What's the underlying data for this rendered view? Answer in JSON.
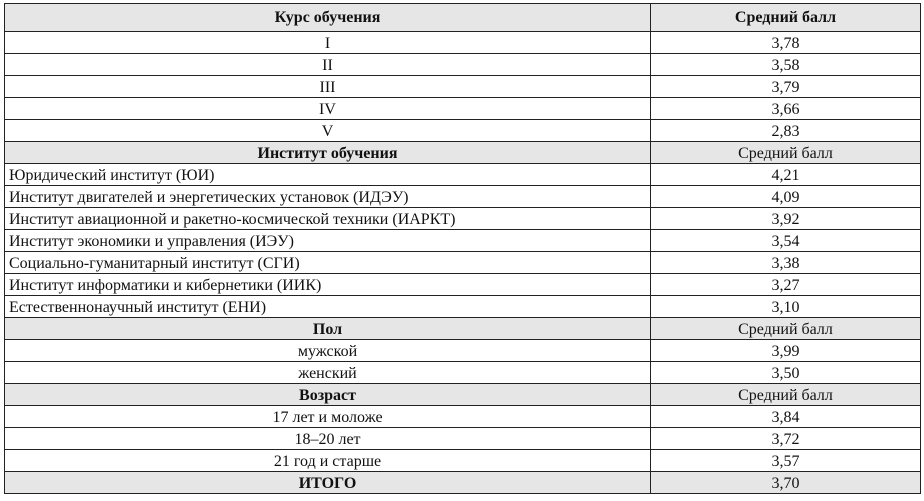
{
  "sections": [
    {
      "header": "Курс обучения",
      "value_header": "Средний балл",
      "align": "center",
      "rows": [
        {
          "label": "I",
          "value": "3,78"
        },
        {
          "label": "II",
          "value": "3,58"
        },
        {
          "label": "III",
          "value": "3,79"
        },
        {
          "label": "IV",
          "value": "3,66"
        },
        {
          "label": "V",
          "value": "2,83"
        }
      ]
    },
    {
      "header": "Институт обучения",
      "value_header": "Средний балл",
      "align": "left",
      "rows": [
        {
          "label": "Юридический институт (ЮИ)",
          "value": "4,21"
        },
        {
          "label": "Институт двигателей и энергетических установок (ИДЭУ)",
          "value": "4,09"
        },
        {
          "label": "Институт авиационной и ракетно-космической техники (ИАРКТ)",
          "value": "3,92"
        },
        {
          "label": "Институт экономики и управления (ИЭУ)",
          "value": "3,54"
        },
        {
          "label": "Социально-гуманитарный институт (СГИ)",
          "value": "3,38"
        },
        {
          "label": "Институт информатики и кибернетики (ИИК)",
          "value": "3,27"
        },
        {
          "label": "Естественнонаучный институт (ЕНИ)",
          "value": "3,10"
        }
      ]
    },
    {
      "header": "Пол",
      "value_header": "Средний балл",
      "align": "center",
      "rows": [
        {
          "label": "мужской",
          "value": "3,99"
        },
        {
          "label": "женский",
          "value": "3,50"
        }
      ]
    },
    {
      "header": "Возраст",
      "value_header": "Средний балл",
      "align": "center",
      "rows": [
        {
          "label": "17 лет и моложе",
          "value": "3,84"
        },
        {
          "label": "18–20 лет",
          "value": "3,72"
        },
        {
          "label": "21 год и старше",
          "value": "3,57"
        }
      ]
    }
  ],
  "total": {
    "label": "ИТОГО",
    "value": "3,70"
  },
  "colors": {
    "header_bg": "#e6e6e6",
    "border": "#222222"
  }
}
